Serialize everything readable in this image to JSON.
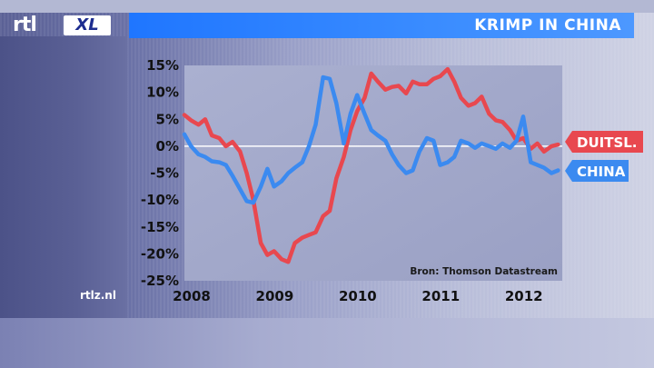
{
  "header": {
    "logo_text": "rtl",
    "logo_badge": "XL",
    "title": "KRIMP IN CHINA"
  },
  "footer": {
    "site": "rtlz.nl"
  },
  "chart_data": {
    "type": "line",
    "title": "KRIMP IN CHINA",
    "source": "Bron: Thomson Datastream",
    "xlabel": "",
    "ylabel": "",
    "xlim": [
      2008.0,
      2012.55
    ],
    "ylim": [
      -25,
      15
    ],
    "y_ticks": [
      15,
      10,
      5,
      0,
      -5,
      -10,
      -15,
      -20,
      -25
    ],
    "y_tick_labels": [
      "15%",
      "10%",
      "5%",
      "0%",
      "-5%",
      "-10%",
      "-15%",
      "-20%",
      "-25%"
    ],
    "x_ticks": [
      2008,
      2009,
      2010,
      2011,
      2012
    ],
    "x_tick_labels": [
      "2008",
      "2009",
      "2010",
      "2011",
      "2012"
    ],
    "zero_line": true,
    "legend_placement": "right, at line ends",
    "series": [
      {
        "name": "DUITSL.",
        "color": "#e8484f",
        "points": [
          [
            2008.0,
            5.8
          ],
          [
            2008.08,
            4.8
          ],
          [
            2008.17,
            4.0
          ],
          [
            2008.25,
            5.0
          ],
          [
            2008.33,
            2.0
          ],
          [
            2008.42,
            1.5
          ],
          [
            2008.5,
            0.0
          ],
          [
            2008.58,
            0.8
          ],
          [
            2008.67,
            -1.0
          ],
          [
            2008.75,
            -5.0
          ],
          [
            2008.83,
            -10.0
          ],
          [
            2008.92,
            -18.0
          ],
          [
            2009.0,
            -20.2
          ],
          [
            2009.08,
            -19.5
          ],
          [
            2009.17,
            -21.0
          ],
          [
            2009.25,
            -21.5
          ],
          [
            2009.33,
            -18.0
          ],
          [
            2009.42,
            -17.0
          ],
          [
            2009.5,
            -16.5
          ],
          [
            2009.58,
            -16.0
          ],
          [
            2009.67,
            -13.0
          ],
          [
            2009.75,
            -12.0
          ],
          [
            2009.83,
            -6.0
          ],
          [
            2009.92,
            -2.0
          ],
          [
            2010.0,
            3.0
          ],
          [
            2010.08,
            6.5
          ],
          [
            2010.17,
            9.0
          ],
          [
            2010.25,
            13.5
          ],
          [
            2010.33,
            12.0
          ],
          [
            2010.42,
            10.5
          ],
          [
            2010.5,
            11.0
          ],
          [
            2010.58,
            11.2
          ],
          [
            2010.67,
            9.8
          ],
          [
            2010.75,
            12.0
          ],
          [
            2010.83,
            11.5
          ],
          [
            2010.92,
            11.5
          ],
          [
            2011.0,
            12.5
          ],
          [
            2011.08,
            13.0
          ],
          [
            2011.17,
            14.3
          ],
          [
            2011.25,
            12.0
          ],
          [
            2011.33,
            9.0
          ],
          [
            2011.42,
            7.5
          ],
          [
            2011.5,
            8.0
          ],
          [
            2011.58,
            9.2
          ],
          [
            2011.67,
            6.0
          ],
          [
            2011.75,
            4.8
          ],
          [
            2011.83,
            4.5
          ],
          [
            2011.92,
            3.0
          ],
          [
            2012.0,
            1.0
          ],
          [
            2012.08,
            1.5
          ],
          [
            2012.17,
            -0.5
          ],
          [
            2012.25,
            0.5
          ],
          [
            2012.33,
            -1.0
          ],
          [
            2012.42,
            0.0
          ],
          [
            2012.5,
            0.3
          ]
        ]
      },
      {
        "name": "CHINA",
        "color": "#3b8af0",
        "points": [
          [
            2008.0,
            2.2
          ],
          [
            2008.08,
            0.0
          ],
          [
            2008.17,
            -1.5
          ],
          [
            2008.25,
            -2.0
          ],
          [
            2008.33,
            -2.8
          ],
          [
            2008.42,
            -3.0
          ],
          [
            2008.5,
            -3.5
          ],
          [
            2008.58,
            -5.5
          ],
          [
            2008.67,
            -8.0
          ],
          [
            2008.75,
            -10.2
          ],
          [
            2008.83,
            -10.5
          ],
          [
            2008.92,
            -7.5
          ],
          [
            2009.0,
            -4.2
          ],
          [
            2009.08,
            -7.5
          ],
          [
            2009.17,
            -6.5
          ],
          [
            2009.25,
            -5.0
          ],
          [
            2009.33,
            -4.0
          ],
          [
            2009.42,
            -3.0
          ],
          [
            2009.5,
            0.0
          ],
          [
            2009.58,
            4.0
          ],
          [
            2009.67,
            12.8
          ],
          [
            2009.75,
            12.5
          ],
          [
            2009.83,
            8.0
          ],
          [
            2009.92,
            0.5
          ],
          [
            2010.0,
            6.0
          ],
          [
            2010.08,
            9.5
          ],
          [
            2010.17,
            6.0
          ],
          [
            2010.25,
            3.0
          ],
          [
            2010.33,
            2.0
          ],
          [
            2010.42,
            1.0
          ],
          [
            2010.5,
            -1.5
          ],
          [
            2010.58,
            -3.5
          ],
          [
            2010.67,
            -5.0
          ],
          [
            2010.75,
            -4.5
          ],
          [
            2010.83,
            -1.0
          ],
          [
            2010.92,
            1.5
          ],
          [
            2011.0,
            1.0
          ],
          [
            2011.08,
            -3.5
          ],
          [
            2011.17,
            -3.0
          ],
          [
            2011.25,
            -2.0
          ],
          [
            2011.33,
            1.0
          ],
          [
            2011.42,
            0.5
          ],
          [
            2011.5,
            -0.3
          ],
          [
            2011.58,
            0.5
          ],
          [
            2011.67,
            0.0
          ],
          [
            2011.75,
            -0.5
          ],
          [
            2011.83,
            0.5
          ],
          [
            2011.92,
            -0.3
          ],
          [
            2012.0,
            1.0
          ],
          [
            2012.08,
            5.5
          ],
          [
            2012.17,
            -3.0
          ],
          [
            2012.25,
            -3.5
          ],
          [
            2012.33,
            -4.0
          ],
          [
            2012.42,
            -5.0
          ],
          [
            2012.5,
            -4.5
          ]
        ]
      }
    ]
  }
}
